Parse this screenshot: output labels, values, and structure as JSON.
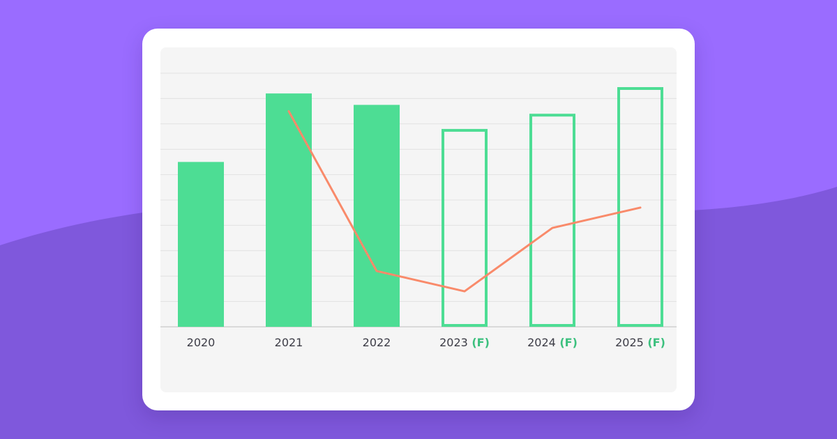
{
  "colors": {
    "background_top": "#9a6cff",
    "background_bottom": "#7f58dc",
    "card": "#ffffff",
    "panel": "#f5f5f5",
    "bar_green": "#4ddd94",
    "line_orange": "#f98a6a",
    "gridline": "#e2e2e2",
    "axis": "#d0d0d0",
    "label_text": "#3c3c46",
    "forecast_text": "#3cc07e"
  },
  "chart_data": {
    "type": "bar",
    "categories": [
      "2020",
      "2021",
      "2022",
      "2023",
      "2024",
      "2025"
    ],
    "forecast_suffix": "(F)",
    "forecast": [
      false,
      false,
      false,
      true,
      true,
      true
    ],
    "ylim": [
      0,
      10
    ],
    "gridlines": 10,
    "series": [
      {
        "type": "bar",
        "values": [
          6.5,
          9.2,
          8.75,
          7.8,
          8.4,
          9.45
        ],
        "styles": [
          "filled",
          "filled",
          "filled",
          "outline",
          "outline",
          "outline"
        ]
      },
      {
        "type": "line",
        "x": [
          "2021",
          "2022",
          "2023",
          "2024",
          "2025"
        ],
        "values": [
          8.5,
          2.2,
          1.4,
          3.9,
          4.7
        ]
      }
    ],
    "grid": true,
    "legend": "none"
  }
}
